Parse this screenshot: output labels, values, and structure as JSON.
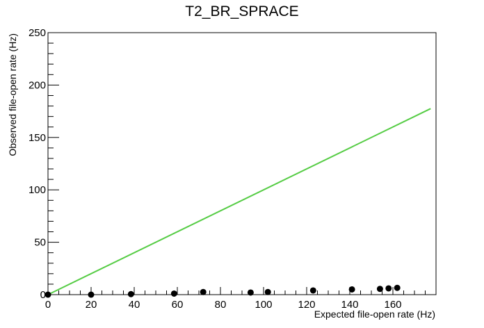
{
  "chart_data": {
    "type": "scatter",
    "title": "T2_BR_SPRACE",
    "xlabel": "Expected file-open rate (Hz)",
    "ylabel": "Observed file-open rate (Hz)",
    "xlim": [
      0,
      180
    ],
    "ylim": [
      0,
      250
    ],
    "x_ticks": [
      "0",
      "20",
      "40",
      "60",
      "80",
      "100",
      "120",
      "140",
      "160"
    ],
    "y_ticks": [
      "0",
      "50",
      "100",
      "150",
      "200",
      "250"
    ],
    "points": [
      {
        "x": 0,
        "y": 0
      },
      {
        "x": 20,
        "y": 0
      },
      {
        "x": 38.5,
        "y": 0.5
      },
      {
        "x": 58.5,
        "y": 1
      },
      {
        "x": 72,
        "y": 2.5
      },
      {
        "x": 94,
        "y": 2
      },
      {
        "x": 102,
        "y": 2.5
      },
      {
        "x": 123,
        "y": 4
      },
      {
        "x": 141,
        "y": 5
      },
      {
        "x": 154,
        "y": 5.5
      },
      {
        "x": 158,
        "y": 6
      },
      {
        "x": 162,
        "y": 6.5
      }
    ],
    "reference_line": {
      "x": [
        0,
        180
      ],
      "y": [
        0,
        180
      ]
    },
    "colors": {
      "points": "#000000",
      "reference_line": "#55cc44",
      "axes": "#000000"
    },
    "grid": false,
    "legend": "none"
  }
}
